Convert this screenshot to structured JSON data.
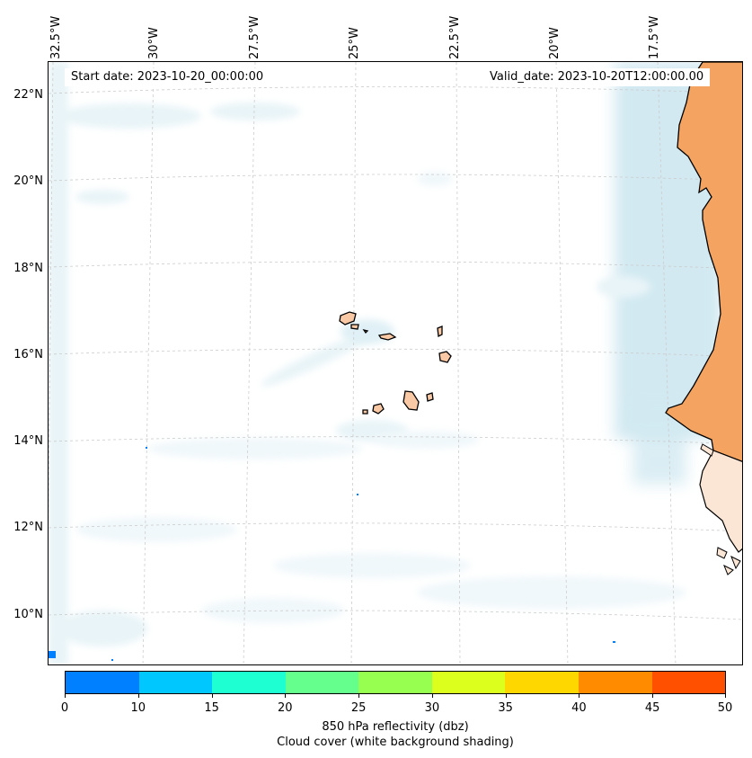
{
  "map": {
    "start_date": "Start date: 2023-10-20_00:00:00",
    "valid_date": "Valid_date: 2023-10-20T12:00:00.00",
    "longitude_labels": [
      "32.5°W",
      "30°W",
      "27.5°W",
      "25°W",
      "22.5°W",
      "20°W",
      "17.5°W"
    ],
    "latitude_labels": [
      "22°N",
      "20°N",
      "18°N",
      "16°N",
      "14°N",
      "12°N",
      "10°N"
    ],
    "colors": {
      "land": "#f4a460",
      "cloud": "#add8e6",
      "coastline": "#000000",
      "gridline": "#cccccc"
    }
  },
  "colorbar": {
    "ticks": [
      "0",
      "10",
      "15",
      "20",
      "25",
      "30",
      "35",
      "40",
      "45",
      "50"
    ],
    "colors": [
      "#0080ff",
      "#00c8ff",
      "#1effd2",
      "#64ff8c",
      "#96ff50",
      "#dcff1e",
      "#ffd700",
      "#ff8c00",
      "#ff5000"
    ],
    "label": "850 hPa reflectivity (dbz)",
    "sublabel": "Cloud cover (white background shading)"
  }
}
